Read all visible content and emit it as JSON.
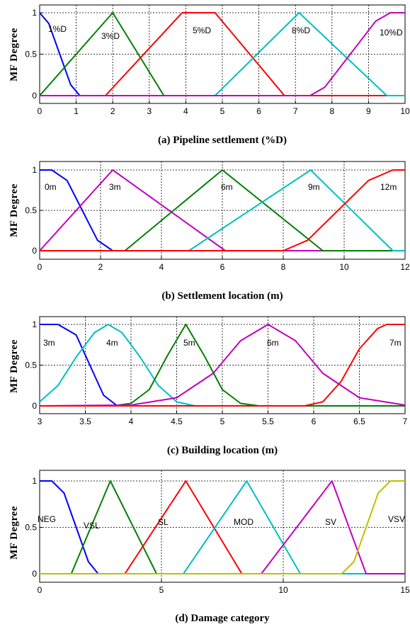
{
  "chart_data": [
    {
      "type": "line",
      "xlabel": "(a) Pipeline settlement (%D)",
      "ylabel": "MF Degree",
      "xlim": [
        0,
        10
      ],
      "ylim": [
        0,
        1
      ],
      "xticks": [
        "0",
        "1",
        "2",
        "3",
        "4",
        "5",
        "6",
        "7",
        "8",
        "9",
        "10"
      ],
      "yticks": [
        "0",
        "0.5",
        "1"
      ],
      "grid": true,
      "series": [
        {
          "name": "1%D",
          "color": "#0000ff",
          "points": [
            [
              0,
              1
            ],
            [
              0.25,
              0.87
            ],
            [
              0.55,
              0.5
            ],
            [
              0.85,
              0.13
            ],
            [
              1.1,
              0
            ]
          ]
        },
        {
          "name": "3%D",
          "color": "#008000",
          "points": [
            [
              0,
              0
            ],
            [
              2,
              1
            ],
            [
              3.4,
              0
            ]
          ]
        },
        {
          "name": "5%D",
          "color": "#ff0000",
          "points": [
            [
              1.8,
              0
            ],
            [
              3.9,
              1
            ],
            [
              4.8,
              1
            ],
            [
              6.7,
              0
            ]
          ]
        },
        {
          "name": "8%D",
          "color": "#00c0c0",
          "points": [
            [
              4.8,
              0
            ],
            [
              7.1,
              1
            ],
            [
              9.5,
              0
            ]
          ]
        },
        {
          "name": "10%D",
          "color": "#c000c0",
          "points": [
            [
              7.4,
              0
            ],
            [
              7.8,
              0.1
            ],
            [
              8.5,
              0.5
            ],
            [
              9.2,
              0.9
            ],
            [
              9.6,
              1
            ],
            [
              10,
              1
            ]
          ]
        }
      ]
    },
    {
      "type": "line",
      "xlabel": "(b) Settlement location (m)",
      "ylabel": "MF Degree",
      "xlim": [
        0,
        12
      ],
      "ylim": [
        0,
        1
      ],
      "xticks": [
        "0",
        "2",
        "4",
        "6",
        "8",
        "10",
        "12"
      ],
      "yticks": [
        "0",
        "0.5",
        "1"
      ],
      "grid": true,
      "series": [
        {
          "name": "0m",
          "color": "#0000ff",
          "points": [
            [
              0,
              1
            ],
            [
              0.4,
              1
            ],
            [
              0.9,
              0.87
            ],
            [
              1.4,
              0.5
            ],
            [
              1.9,
              0.13
            ],
            [
              2.4,
              0
            ]
          ]
        },
        {
          "name": "3m",
          "color": "#c000c0",
          "points": [
            [
              0,
              0
            ],
            [
              2.4,
              1
            ],
            [
              6.1,
              0
            ]
          ]
        },
        {
          "name": "6m",
          "color": "#008000",
          "points": [
            [
              2.8,
              0
            ],
            [
              6,
              1
            ],
            [
              9.3,
              0
            ]
          ]
        },
        {
          "name": "9m",
          "color": "#00c0c0",
          "points": [
            [
              4.9,
              0
            ],
            [
              8.9,
              1
            ],
            [
              11.6,
              0
            ]
          ]
        },
        {
          "name": "12m",
          "color": "#ff0000",
          "points": [
            [
              8,
              0
            ],
            [
              8.8,
              0.13
            ],
            [
              9.8,
              0.5
            ],
            [
              10.8,
              0.87
            ],
            [
              11.6,
              1
            ],
            [
              12,
              1
            ]
          ]
        }
      ]
    },
    {
      "type": "line",
      "xlabel": "(c) Building location (m)",
      "ylabel": "MF Degree",
      "xlim": [
        3,
        7
      ],
      "ylim": [
        0,
        1
      ],
      "xticks": [
        "3",
        "3.5",
        "4",
        "4.5",
        "5",
        "5.5",
        "6",
        "6.5",
        "7"
      ],
      "yticks": [
        "0",
        "0.5",
        "1"
      ],
      "grid": true,
      "series": [
        {
          "name": "3m",
          "color": "#0000ff",
          "points": [
            [
              3,
              1
            ],
            [
              3.2,
              1
            ],
            [
              3.4,
              0.87
            ],
            [
              3.55,
              0.5
            ],
            [
              3.7,
              0.13
            ],
            [
              3.85,
              0
            ]
          ]
        },
        {
          "name": "4m",
          "color": "#00c0c0",
          "points": [
            [
              3,
              0.05
            ],
            [
              3.2,
              0.25
            ],
            [
              3.4,
              0.6
            ],
            [
              3.6,
              0.9
            ],
            [
              3.75,
              1
            ],
            [
              3.9,
              0.9
            ],
            [
              4.1,
              0.6
            ],
            [
              4.3,
              0.25
            ],
            [
              4.5,
              0.05
            ],
            [
              4.7,
              0
            ]
          ]
        },
        {
          "name": "5m",
          "color": "#008000",
          "points": [
            [
              3.8,
              0
            ],
            [
              4,
              0.03
            ],
            [
              4.2,
              0.2
            ],
            [
              4.4,
              0.62
            ],
            [
              4.6,
              1
            ],
            [
              4.8,
              0.62
            ],
            [
              5,
              0.2
            ],
            [
              5.2,
              0.03
            ],
            [
              5.4,
              0
            ]
          ]
        },
        {
          "name": "6m",
          "color": "#c000c0",
          "points": [
            [
              3,
              0
            ],
            [
              4,
              0.01
            ],
            [
              4.5,
              0.1
            ],
            [
              4.9,
              0.4
            ],
            [
              5.2,
              0.8
            ],
            [
              5.5,
              1
            ],
            [
              5.8,
              0.8
            ],
            [
              6.1,
              0.4
            ],
            [
              6.5,
              0.1
            ],
            [
              7,
              0.01
            ]
          ]
        },
        {
          "name": "7m",
          "color": "#ff0000",
          "points": [
            [
              5.9,
              0
            ],
            [
              6.1,
              0.05
            ],
            [
              6.3,
              0.3
            ],
            [
              6.5,
              0.7
            ],
            [
              6.7,
              0.95
            ],
            [
              6.8,
              1
            ],
            [
              7,
              1
            ]
          ]
        }
      ]
    },
    {
      "type": "line",
      "xlabel": "(d) Damage category",
      "ylabel": "MF Degree",
      "xlim": [
        0,
        15
      ],
      "ylim": [
        0,
        1
      ],
      "xticks": [
        "0",
        "5",
        "10",
        "15"
      ],
      "yticks": [
        "0",
        "0.5",
        "1"
      ],
      "grid": true,
      "series": [
        {
          "name": "NEG",
          "color": "#0000ff",
          "points": [
            [
              0,
              1
            ],
            [
              0.5,
              1
            ],
            [
              1,
              0.87
            ],
            [
              1.5,
              0.5
            ],
            [
              2,
              0.13
            ],
            [
              2.4,
              0
            ]
          ]
        },
        {
          "name": "VSL",
          "color": "#008000",
          "points": [
            [
              1.3,
              0
            ],
            [
              2.9,
              1
            ],
            [
              4.8,
              0
            ]
          ]
        },
        {
          "name": "SL",
          "color": "#ff0000",
          "points": [
            [
              3.5,
              0
            ],
            [
              6,
              1
            ],
            [
              8.3,
              0
            ]
          ]
        },
        {
          "name": "MOD",
          "color": "#00c0c0",
          "points": [
            [
              5.9,
              0
            ],
            [
              8.5,
              1
            ],
            [
              10.7,
              0
            ]
          ]
        },
        {
          "name": "SV",
          "color": "#c000c0",
          "points": [
            [
              9.1,
              0
            ],
            [
              12,
              1
            ],
            [
              13.4,
              0
            ]
          ]
        },
        {
          "name": "VSV",
          "color": "#c0c000",
          "points": [
            [
              12.4,
              0
            ],
            [
              12.9,
              0.13
            ],
            [
              13.4,
              0.5
            ],
            [
              13.9,
              0.87
            ],
            [
              14.4,
              1
            ],
            [
              15,
              1
            ]
          ]
        }
      ]
    }
  ]
}
